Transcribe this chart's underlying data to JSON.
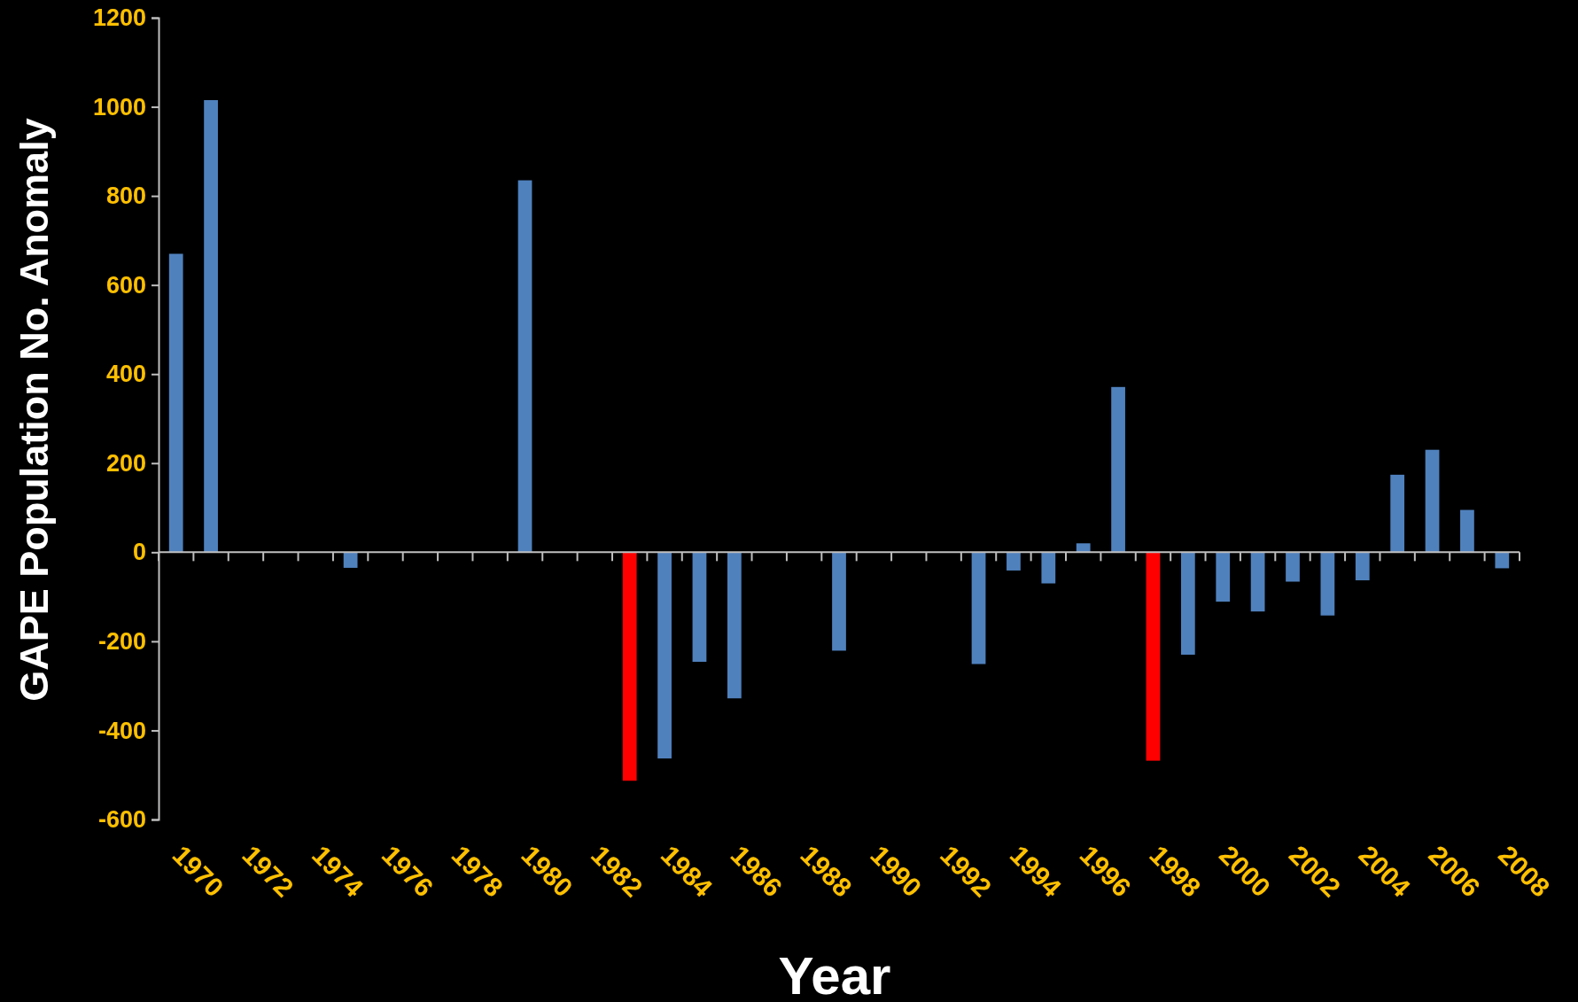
{
  "chart_data": {
    "type": "bar",
    "xlabel": "Year",
    "ylabel": "GAPE Population No. Anomaly",
    "categories": [
      "1970",
      null,
      "1972",
      null,
      "1974",
      null,
      "1976",
      null,
      "1978",
      null,
      "1980",
      null,
      "1982",
      null,
      "1984",
      null,
      "1986",
      null,
      "1988",
      null,
      "1990",
      null,
      "1992",
      null,
      "1994",
      null,
      "1996",
      null,
      "1998",
      null,
      "2000",
      null,
      "2002",
      null,
      "2004",
      null,
      "2006",
      null,
      "2008"
    ],
    "values": [
      670,
      1015,
      null,
      null,
      null,
      -35,
      null,
      null,
      null,
      null,
      835,
      null,
      null,
      -513,
      -463,
      -246,
      -328,
      null,
      null,
      -221,
      null,
      null,
      null,
      -251,
      -41,
      -70,
      20,
      371,
      -468,
      -230,
      -111,
      -133,
      -66,
      -142,
      -63,
      174,
      230,
      95,
      -36
    ],
    "colors": [
      "#4f81bd",
      "#4f81bd",
      null,
      null,
      null,
      "#4f81bd",
      null,
      null,
      null,
      null,
      "#4f81bd",
      null,
      null,
      "#ff0000",
      "#4f81bd",
      "#4f81bd",
      "#4f81bd",
      null,
      null,
      "#4f81bd",
      null,
      null,
      null,
      "#4f81bd",
      "#4f81bd",
      "#4f81bd",
      "#4f81bd",
      "#4f81bd",
      "#ff0000",
      "#4f81bd",
      "#4f81bd",
      "#4f81bd",
      "#4f81bd",
      "#4f81bd",
      "#4f81bd",
      "#4f81bd",
      "#4f81bd",
      "#4f81bd",
      "#4f81bd"
    ],
    "ylim": [
      -600,
      1200
    ],
    "yticks": [
      -600,
      -400,
      -200,
      0,
      200,
      400,
      600,
      800,
      1000,
      1200
    ]
  }
}
